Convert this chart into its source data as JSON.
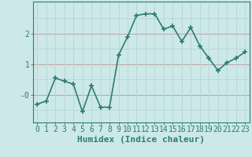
{
  "x": [
    0,
    1,
    2,
    3,
    4,
    5,
    6,
    7,
    8,
    9,
    10,
    11,
    12,
    13,
    14,
    15,
    16,
    17,
    18,
    19,
    20,
    21,
    22,
    23
  ],
  "y": [
    -0.3,
    -0.2,
    0.55,
    0.45,
    0.35,
    -0.55,
    0.3,
    -0.4,
    -0.4,
    1.3,
    1.9,
    2.6,
    2.65,
    2.65,
    2.15,
    2.25,
    1.75,
    2.2,
    1.6,
    1.2,
    0.8,
    1.05,
    1.2,
    1.4
  ],
  "line_color": "#2e7d6e",
  "marker": "+",
  "marker_size": 4,
  "bg_color": "#cce8e8",
  "grid_color_minor": "#b8d8d8",
  "grid_color_major": "#c0a0a0",
  "xlabel": "Humidex (Indice chaleur)",
  "xlim": [
    -0.5,
    23.5
  ],
  "ylim": [
    -0.9,
    3.05
  ],
  "red_hlines": [
    0.0,
    1.0,
    2.0
  ],
  "teal_hlines": [
    -0.5,
    0.5,
    1.5,
    2.5
  ],
  "xlabel_fontsize": 8,
  "tick_fontsize": 7,
  "linewidth": 1.2
}
